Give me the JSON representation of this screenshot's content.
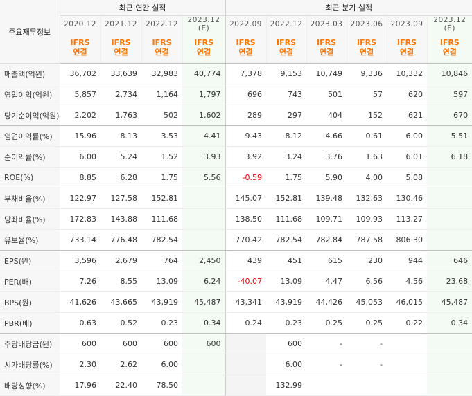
{
  "table": {
    "corner_label": "주요재무정보",
    "group_annual": "최근 연간 실적",
    "group_quarterly": "최근 분기 실적",
    "columns": [
      {
        "period": "2020.12",
        "est": "",
        "basis1": "IFRS",
        "basis2": "연결"
      },
      {
        "period": "2021.12",
        "est": "",
        "basis1": "IFRS",
        "basis2": "연결"
      },
      {
        "period": "2022.12",
        "est": "",
        "basis1": "IFRS",
        "basis2": "연결"
      },
      {
        "period": "2023.12",
        "est": "(E)",
        "basis1": "IFRS",
        "basis2": "연결"
      },
      {
        "period": "2022.09",
        "est": "",
        "basis1": "IFRS",
        "basis2": "연결"
      },
      {
        "period": "2022.12",
        "est": "",
        "basis1": "IFRS",
        "basis2": "연결"
      },
      {
        "period": "2023.03",
        "est": "",
        "basis1": "IFRS",
        "basis2": "연결"
      },
      {
        "period": "2023.06",
        "est": "",
        "basis1": "IFRS",
        "basis2": "연결"
      },
      {
        "period": "2023.09",
        "est": "",
        "basis1": "IFRS",
        "basis2": "연결"
      },
      {
        "period": "2023.12",
        "est": "(E)",
        "basis1": "IFRS",
        "basis2": "연결"
      }
    ],
    "rows": [
      {
        "label": "매출액(억원)",
        "values": [
          "36,702",
          "33,639",
          "32,983",
          "40,774",
          "7,378",
          "9,153",
          "10,749",
          "9,336",
          "10,332",
          "10,846"
        ]
      },
      {
        "label": "영업이익(억원)",
        "values": [
          "5,857",
          "2,734",
          "1,164",
          "1,797",
          "696",
          "743",
          "501",
          "57",
          "620",
          "597"
        ]
      },
      {
        "label": "당기순이익(억원)",
        "values": [
          "2,202",
          "1,763",
          "502",
          "1,602",
          "289",
          "297",
          "404",
          "152",
          "621",
          "670"
        ]
      },
      {
        "label": "영업이익률(%)",
        "values": [
          "15.96",
          "8.13",
          "3.53",
          "4.41",
          "9.43",
          "8.12",
          "4.66",
          "0.61",
          "6.00",
          "5.51"
        ]
      },
      {
        "label": "순이익률(%)",
        "values": [
          "6.00",
          "5.24",
          "1.52",
          "3.93",
          "3.92",
          "3.24",
          "3.76",
          "1.63",
          "6.01",
          "6.18"
        ]
      },
      {
        "label": "ROE(%)",
        "values": [
          "8.85",
          "6.28",
          "1.75",
          "5.56",
          "-0.59",
          "1.75",
          "5.90",
          "4.00",
          "5.08",
          ""
        ]
      },
      {
        "label": "부채비율(%)",
        "values": [
          "122.97",
          "127.58",
          "152.81",
          "",
          "145.07",
          "152.81",
          "139.48",
          "132.63",
          "130.46",
          ""
        ]
      },
      {
        "label": "당좌비율(%)",
        "values": [
          "172.83",
          "143.88",
          "111.68",
          "",
          "138.50",
          "111.68",
          "109.71",
          "109.93",
          "113.27",
          ""
        ]
      },
      {
        "label": "유보율(%)",
        "values": [
          "733.14",
          "776.48",
          "782.54",
          "",
          "770.42",
          "782.54",
          "782.84",
          "787.58",
          "806.30",
          ""
        ]
      },
      {
        "label": "EPS(원)",
        "values": [
          "3,596",
          "2,679",
          "764",
          "2,450",
          "439",
          "451",
          "615",
          "230",
          "944",
          "646"
        ]
      },
      {
        "label": "PER(배)",
        "values": [
          "7.26",
          "8.55",
          "13.09",
          "6.24",
          "-40.07",
          "13.09",
          "4.47",
          "6.56",
          "4.56",
          "23.68"
        ]
      },
      {
        "label": "BPS(원)",
        "values": [
          "41,626",
          "43,665",
          "43,919",
          "45,487",
          "43,341",
          "43,919",
          "44,426",
          "45,053",
          "46,015",
          "45,487"
        ]
      },
      {
        "label": "PBR(배)",
        "values": [
          "0.63",
          "0.52",
          "0.23",
          "0.34",
          "0.24",
          "0.23",
          "0.25",
          "0.25",
          "0.22",
          "0.34"
        ]
      },
      {
        "label": "주당배당금(원)",
        "values": [
          "600",
          "600",
          "600",
          "600",
          "",
          "600",
          "-",
          "-",
          "",
          ""
        ]
      },
      {
        "label": "시가배당률(%)",
        "values": [
          "2.30",
          "2.62",
          "6.00",
          "",
          "",
          "6.00",
          "-",
          "-",
          "",
          ""
        ]
      },
      {
        "label": "배당성향(%)",
        "values": [
          "17.96",
          "22.40",
          "78.50",
          "",
          "",
          "132.99",
          "",
          "",
          "",
          ""
        ]
      }
    ],
    "colors": {
      "basis": "#ff7500",
      "negative": "#ee0000",
      "estimate_bg": "#f4faf4",
      "header_bg": "#f7f7f7"
    }
  }
}
